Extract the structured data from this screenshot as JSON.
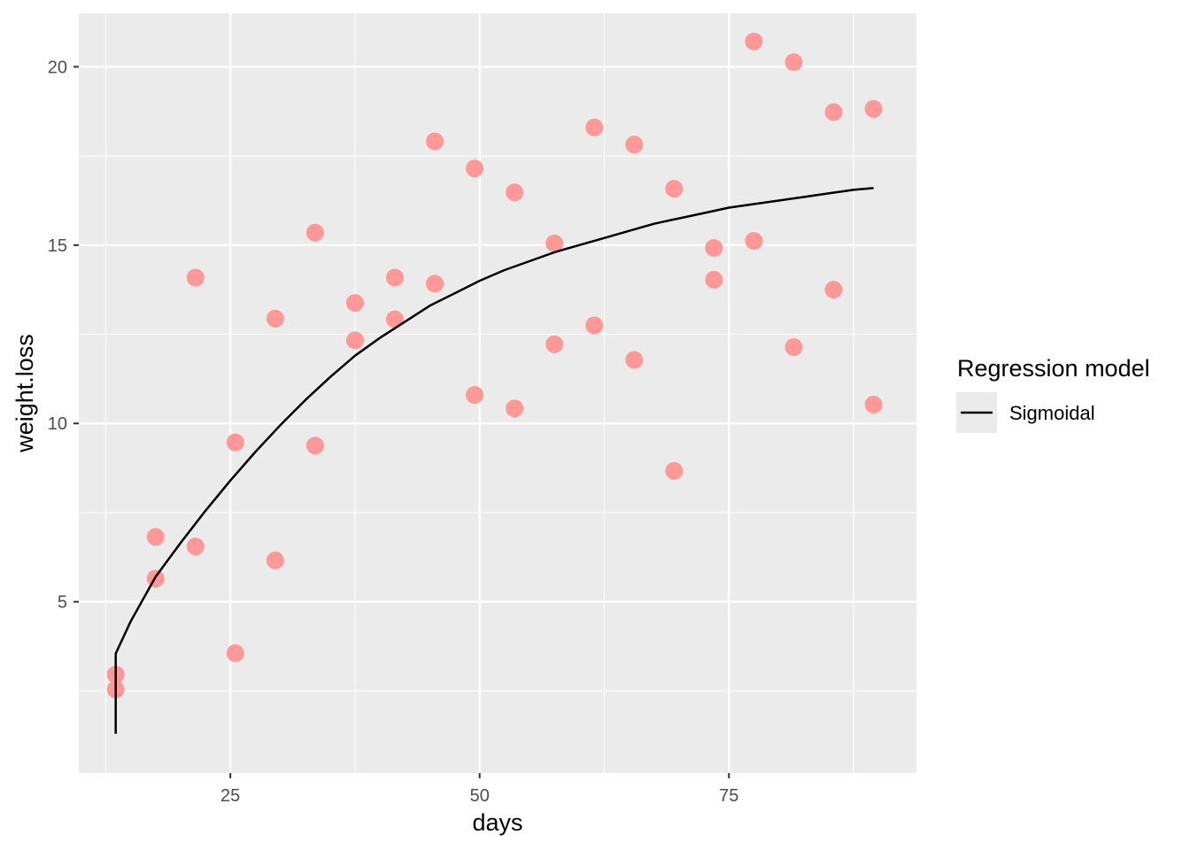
{
  "chart_data": {
    "type": "scatter",
    "xlabel": "days",
    "ylabel": "weight.loss",
    "xlim": [
      9.8,
      93.8
    ],
    "ylim": [
      0.2,
      21.5
    ],
    "x_major_ticks": [
      25,
      50,
      75
    ],
    "x_minor_ticks": [
      12.5,
      37.5,
      62.5,
      87.5
    ],
    "y_major_ticks": [
      5,
      10,
      15,
      20
    ],
    "y_minor_ticks": [
      2.5,
      7.5,
      12.5,
      17.5
    ],
    "grid": true,
    "legend_position": "right",
    "colors": {
      "panel_bg": "#ebebeb",
      "grid": "#ffffff",
      "points": "#ff9896",
      "curve": "#000000"
    },
    "points": [
      {
        "x": 13.5,
        "y": 2.96
      },
      {
        "x": 13.5,
        "y": 2.54
      },
      {
        "x": 17.5,
        "y": 6.82
      },
      {
        "x": 17.5,
        "y": 5.65
      },
      {
        "x": 21.5,
        "y": 14.09
      },
      {
        "x": 21.5,
        "y": 6.55
      },
      {
        "x": 25.5,
        "y": 9.47
      },
      {
        "x": 25.5,
        "y": 3.56
      },
      {
        "x": 29.5,
        "y": 12.94
      },
      {
        "x": 29.5,
        "y": 6.16
      },
      {
        "x": 33.5,
        "y": 15.35
      },
      {
        "x": 33.5,
        "y": 9.38
      },
      {
        "x": 37.5,
        "y": 13.38
      },
      {
        "x": 37.5,
        "y": 12.33
      },
      {
        "x": 41.5,
        "y": 14.09
      },
      {
        "x": 41.5,
        "y": 12.92
      },
      {
        "x": 45.5,
        "y": 17.91
      },
      {
        "x": 45.5,
        "y": 13.92
      },
      {
        "x": 49.5,
        "y": 17.15
      },
      {
        "x": 49.5,
        "y": 10.8
      },
      {
        "x": 53.5,
        "y": 16.48
      },
      {
        "x": 53.5,
        "y": 10.42
      },
      {
        "x": 57.5,
        "y": 15.05
      },
      {
        "x": 57.5,
        "y": 12.22
      },
      {
        "x": 61.5,
        "y": 18.3
      },
      {
        "x": 61.5,
        "y": 12.75
      },
      {
        "x": 65.5,
        "y": 17.82
      },
      {
        "x": 65.5,
        "y": 11.78
      },
      {
        "x": 69.5,
        "y": 16.58
      },
      {
        "x": 69.5,
        "y": 8.67
      },
      {
        "x": 73.5,
        "y": 14.92
      },
      {
        "x": 73.5,
        "y": 14.03
      },
      {
        "x": 77.5,
        "y": 20.71
      },
      {
        "x": 77.5,
        "y": 15.12
      },
      {
        "x": 81.5,
        "y": 20.13
      },
      {
        "x": 81.5,
        "y": 12.14
      },
      {
        "x": 85.5,
        "y": 18.73
      },
      {
        "x": 85.5,
        "y": 13.75
      },
      {
        "x": 89.5,
        "y": 18.82
      },
      {
        "x": 89.5,
        "y": 10.53
      }
    ],
    "series": [
      {
        "name": "Sigmoidal",
        "type": "line",
        "x": [
          13.5,
          13.5,
          15,
          17.5,
          20,
          22.5,
          25,
          27.5,
          30,
          32.5,
          35,
          37.5,
          40,
          42.5,
          45,
          47.5,
          50,
          52.5,
          55,
          57.5,
          60,
          62.5,
          65,
          67.5,
          70,
          72.5,
          75,
          77.5,
          80,
          82.5,
          85,
          87.5,
          89.5
        ],
        "y": [
          1.3,
          3.55,
          4.45,
          5.7,
          6.65,
          7.55,
          8.4,
          9.2,
          9.95,
          10.65,
          11.3,
          11.9,
          12.4,
          12.85,
          13.3,
          13.65,
          14.0,
          14.3,
          14.55,
          14.8,
          15.0,
          15.2,
          15.4,
          15.6,
          15.75,
          15.9,
          16.05,
          16.15,
          16.25,
          16.35,
          16.45,
          16.55,
          16.6
        ]
      }
    ],
    "legend": {
      "title": "Regression model",
      "entries": [
        {
          "label": "Sigmoidal",
          "color": "#000000"
        }
      ]
    }
  }
}
